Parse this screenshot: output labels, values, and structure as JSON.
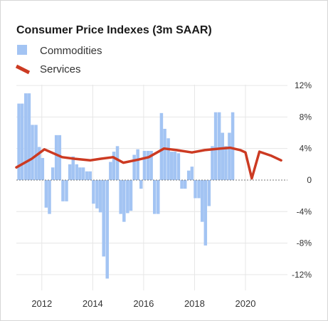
{
  "chart_data": {
    "type": "bar",
    "title": "Consumer Price Indexes (3m SAAR)",
    "xlabel": "",
    "ylabel": "",
    "ylim": [
      -14,
      13
    ],
    "grid": true,
    "legend_position": "top-left",
    "y_ticks": [
      12,
      8,
      4,
      0,
      -4,
      -8,
      -12
    ],
    "y_tick_labels": [
      "12%",
      "8%",
      "4%",
      "0",
      "-4%",
      "-8%",
      "-12%"
    ],
    "x_ticks": [
      2012,
      2014,
      2016,
      2018,
      2020
    ],
    "x_tick_labels": [
      "2012",
      "2014",
      "2016",
      "2018",
      "2020"
    ],
    "xlim": [
      2011.0,
      2021.65
    ],
    "series": [
      {
        "name": "Commodities",
        "kind": "bar",
        "color": "#a3c4f3",
        "x": [
          2011.1,
          2011.23,
          2011.37,
          2011.5,
          2011.63,
          2011.77,
          2011.9,
          2012.03,
          2012.17,
          2012.3,
          2012.43,
          2012.57,
          2012.7,
          2012.83,
          2012.97,
          2013.1,
          2013.23,
          2013.37,
          2013.5,
          2013.63,
          2013.77,
          2013.9,
          2014.03,
          2014.17,
          2014.3,
          2014.43,
          2014.57,
          2014.7,
          2014.83,
          2014.97,
          2015.1,
          2015.23,
          2015.37,
          2015.5,
          2015.63,
          2015.77,
          2015.9,
          2016.03,
          2016.17,
          2016.3,
          2016.43,
          2016.57,
          2016.7,
          2016.83,
          2016.97,
          2017.1,
          2017.23,
          2017.37,
          2017.5,
          2017.63,
          2017.77,
          2017.9,
          2018.03,
          2018.17,
          2018.3,
          2018.43,
          2018.57,
          2018.7,
          2018.83,
          2018.97,
          2019.1,
          2019.23,
          2019.37,
          2019.5,
          2019.63,
          2019.77,
          2019.9,
          2020.03,
          2020.17,
          2020.3,
          2020.43,
          2020.57,
          2020.7,
          2020.83,
          2020.97,
          2021.1,
          2021.23,
          2021.37
        ],
        "values": [
          9.7,
          9.7,
          11.0,
          11.0,
          7.0,
          7.0,
          4.2,
          2.8,
          -3.5,
          -4.3,
          1.6,
          5.7,
          5.7,
          -2.7,
          -2.7,
          2.0,
          3.0,
          2.0,
          1.6,
          1.6,
          1.1,
          1.1,
          -3.0,
          -3.6,
          -4.1,
          -9.7,
          -12.5,
          2.3,
          3.6,
          4.3,
          -4.3,
          -5.3,
          -4.2,
          -3.9,
          3.2,
          3.9,
          -1.1,
          3.7,
          3.7,
          3.7,
          -4.3,
          -4.3,
          8.5,
          6.5,
          5.3,
          3.6,
          3.6,
          3.4,
          -1.1,
          -1.1,
          1.2,
          1.7,
          -2.3,
          -2.3,
          -5.3,
          -8.3,
          -3.3,
          4.3,
          8.6,
          8.6,
          6.0,
          4.3,
          6.0,
          8.6,
          0,
          0,
          0,
          0,
          0,
          0,
          0,
          0,
          0,
          0,
          0,
          0,
          0,
          0
        ]
      },
      {
        "name": "Services",
        "kind": "line",
        "color": "#cc3a22",
        "x": [
          2011.0,
          2011.6,
          2012.1,
          2012.8,
          2013.3,
          2013.9,
          2014.3,
          2014.8,
          2015.2,
          2015.8,
          2016.2,
          2016.8,
          2017.3,
          2017.9,
          2018.4,
          2019.0,
          2019.4,
          2019.8,
          2020.0,
          2020.25,
          2020.55,
          2021.0,
          2021.4
        ],
        "values": [
          1.6,
          2.7,
          3.9,
          2.9,
          2.7,
          2.5,
          2.7,
          2.9,
          2.2,
          2.6,
          2.9,
          4.0,
          3.8,
          3.5,
          3.8,
          4.0,
          4.1,
          3.8,
          3.5,
          0.2,
          3.6,
          3.1,
          2.5
        ]
      }
    ]
  }
}
